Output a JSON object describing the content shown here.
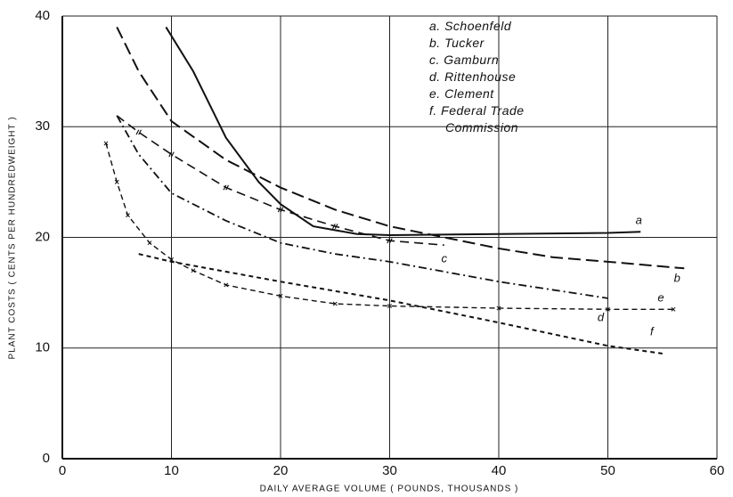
{
  "chart_data": {
    "type": "line",
    "xlabel": "DAILY AVERAGE VOLUME ( POUNDS, THOUSANDS )",
    "ylabel": "PLANT COSTS ( CENTS PER HUNDREDWEIGHT )",
    "xlim": [
      0,
      60
    ],
    "xticks": [
      0,
      10,
      20,
      30,
      40,
      50,
      60
    ],
    "ylim": [
      0,
      40
    ],
    "yticks": [
      0,
      10,
      20,
      30,
      40
    ],
    "grid": true,
    "legend": "upper right",
    "series": [
      {
        "name": "a. Schoenfeld",
        "label": "a",
        "style": "solid",
        "color": "#111111",
        "x": [
          9.5,
          12,
          15,
          18,
          20,
          23,
          27,
          30,
          40,
          50,
          53
        ],
        "values": [
          39,
          35,
          29,
          25,
          23,
          21,
          20.3,
          20.2,
          20.3,
          20.4,
          20.5
        ]
      },
      {
        "name": "b. Tucker",
        "label": "b",
        "style": "dash",
        "color": "#111111",
        "x": [
          5,
          7,
          10,
          15,
          20,
          25,
          30,
          35,
          40,
          45,
          50,
          57
        ],
        "values": [
          39,
          35,
          30.5,
          27,
          24.5,
          22.5,
          21,
          20,
          19,
          18.2,
          17.8,
          17.2
        ]
      },
      {
        "name": "c. Gamburn",
        "label": "c",
        "style": "slash",
        "color": "#111111",
        "x": [
          5,
          7,
          10,
          15,
          20,
          25,
          30,
          35
        ],
        "values": [
          31,
          29.5,
          27.5,
          24.5,
          22.5,
          21,
          19.7,
          19.3
        ]
      },
      {
        "name": "d. Rittenhouse",
        "label": "d",
        "style": "dashdot",
        "color": "#111111",
        "x": [
          5,
          7,
          10,
          15,
          20,
          25,
          30,
          40,
          50
        ],
        "values": [
          31,
          27.5,
          24,
          21.5,
          19.5,
          18.5,
          17.8,
          16,
          14.5
        ]
      },
      {
        "name": "e. Clement",
        "label": "e",
        "style": "x",
        "color": "#111111",
        "x": [
          4,
          5,
          6,
          8,
          10,
          12,
          15,
          20,
          25,
          30,
          40,
          50,
          56
        ],
        "values": [
          28.5,
          25,
          22,
          19.5,
          18,
          17,
          15.7,
          14.7,
          14,
          13.8,
          13.6,
          13.5,
          13.5
        ]
      },
      {
        "name": "f. Federal Trade Commission",
        "label": "f",
        "style": "dot",
        "color": "#111111",
        "x": [
          7,
          10,
          20,
          30,
          40,
          50,
          55
        ],
        "values": [
          18.5,
          17.8,
          16,
          14.3,
          12.3,
          10.2,
          9.5
        ]
      }
    ]
  }
}
